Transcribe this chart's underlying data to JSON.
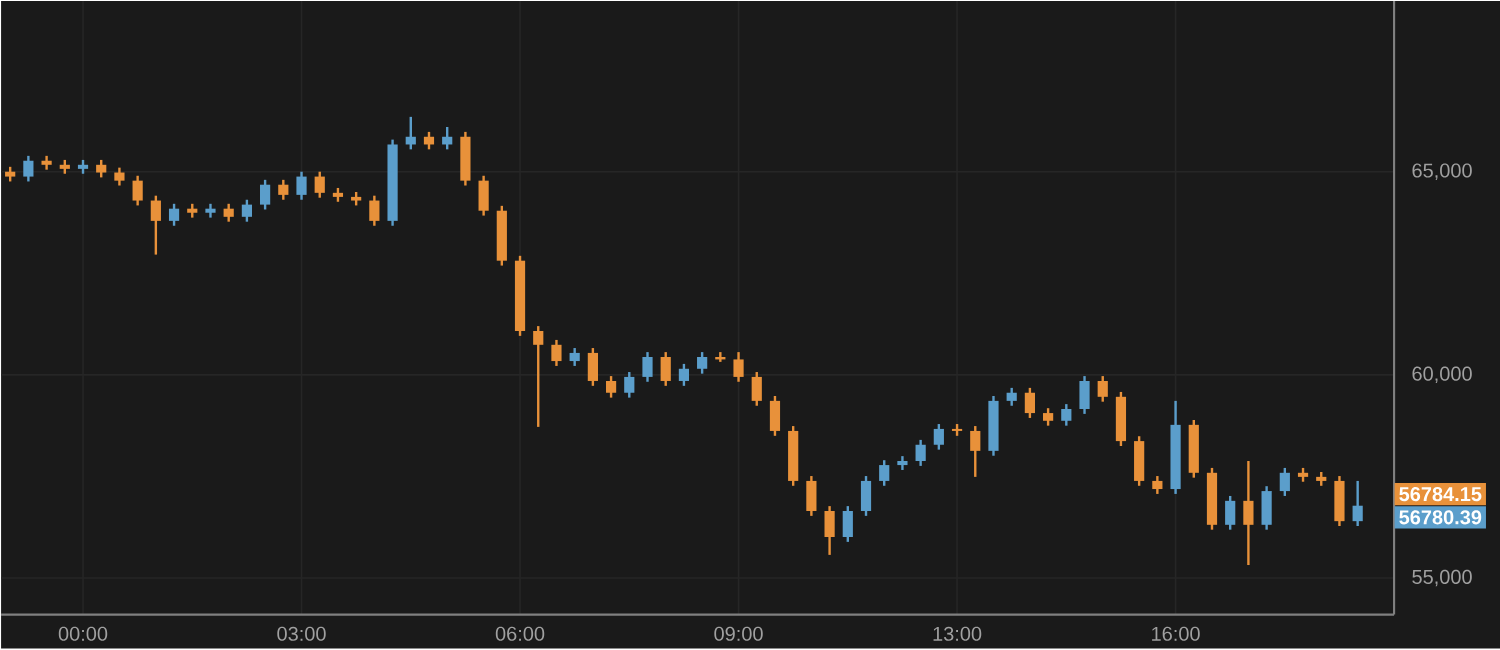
{
  "chart_data": {
    "type": "candlestick",
    "categories": [
      null,
      null,
      null,
      null,
      "00:00",
      null,
      null,
      null,
      null,
      null,
      null,
      null,
      null,
      null,
      null,
      null,
      "03:00",
      null,
      null,
      null,
      null,
      null,
      null,
      null,
      null,
      null,
      null,
      null,
      "06:00",
      null,
      null,
      null,
      null,
      null,
      null,
      null,
      null,
      null,
      null,
      null,
      "09:00",
      null,
      null,
      null,
      null,
      null,
      null,
      null,
      null,
      null,
      null,
      null,
      "13:00",
      null,
      null,
      null,
      null,
      null,
      null,
      null,
      null,
      null,
      null,
      null,
      "16:00",
      null,
      null,
      null,
      null,
      null,
      null,
      null,
      null,
      null,
      null
    ],
    "ohlc": [
      [
        65000,
        65120,
        64760,
        64880
      ],
      [
        64880,
        65390,
        64760,
        65270
      ],
      [
        65270,
        65390,
        65050,
        65170
      ],
      [
        65170,
        65290,
        64950,
        65070
      ],
      [
        65070,
        65290,
        64950,
        65170
      ],
      [
        65170,
        65290,
        64860,
        64980
      ],
      [
        64980,
        65100,
        64660,
        64780
      ],
      [
        64780,
        64900,
        64170,
        64290
      ],
      [
        64290,
        64410,
        62960,
        63790
      ],
      [
        63790,
        64210,
        63670,
        64090
      ],
      [
        64090,
        64210,
        63870,
        63990
      ],
      [
        63990,
        64210,
        63870,
        64090
      ],
      [
        64090,
        64210,
        63770,
        63890
      ],
      [
        63890,
        64310,
        63770,
        64190
      ],
      [
        64190,
        64800,
        64070,
        64680
      ],
      [
        64680,
        64800,
        64310,
        64430
      ],
      [
        64430,
        65000,
        64310,
        64880
      ],
      [
        64880,
        65000,
        64360,
        64480
      ],
      [
        64480,
        64600,
        64260,
        64380
      ],
      [
        64380,
        64500,
        64170,
        64290
      ],
      [
        64290,
        64410,
        63670,
        63790
      ],
      [
        63790,
        65790,
        63670,
        65670
      ],
      [
        65670,
        66350,
        65550,
        65860
      ],
      [
        65860,
        65980,
        65550,
        65670
      ],
      [
        65670,
        66100,
        65550,
        65860
      ],
      [
        65860,
        65980,
        64660,
        64780
      ],
      [
        64780,
        64900,
        63920,
        64040
      ],
      [
        64040,
        64160,
        62690,
        62810
      ],
      [
        62810,
        62930,
        60960,
        61080
      ],
      [
        61080,
        61200,
        58720,
        60740
      ],
      [
        60740,
        60860,
        60220,
        60340
      ],
      [
        60340,
        60660,
        60220,
        60540
      ],
      [
        60540,
        60660,
        59730,
        59850
      ],
      [
        59850,
        59970,
        59440,
        59560
      ],
      [
        59560,
        60070,
        59440,
        59950
      ],
      [
        59950,
        60560,
        59830,
        60440
      ],
      [
        60440,
        60560,
        59730,
        59850
      ],
      [
        59850,
        60270,
        59730,
        60150
      ],
      [
        60150,
        60560,
        60030,
        60440
      ],
      [
        60440,
        60560,
        60320,
        60380
      ],
      [
        60380,
        60560,
        59830,
        59950
      ],
      [
        59950,
        60070,
        59240,
        59360
      ],
      [
        59360,
        59480,
        58500,
        58620
      ],
      [
        58620,
        58740,
        57270,
        57390
      ],
      [
        57390,
        57510,
        56530,
        56650
      ],
      [
        56650,
        56770,
        55570,
        56010
      ],
      [
        56010,
        56770,
        55890,
        56650
      ],
      [
        56650,
        57510,
        56530,
        57390
      ],
      [
        57390,
        57900,
        57270,
        57780
      ],
      [
        57780,
        58000,
        57660,
        57880
      ],
      [
        57880,
        58400,
        57760,
        58280
      ],
      [
        58280,
        58790,
        58160,
        58670
      ],
      [
        58670,
        58790,
        58500,
        58620
      ],
      [
        58620,
        58740,
        57490,
        58130
      ],
      [
        58130,
        59480,
        58010,
        59360
      ],
      [
        59360,
        59680,
        59240,
        59560
      ],
      [
        59560,
        59680,
        58940,
        59060
      ],
      [
        59060,
        59180,
        58750,
        58870
      ],
      [
        58870,
        59280,
        58750,
        59160
      ],
      [
        59160,
        59970,
        59040,
        59850
      ],
      [
        59850,
        59970,
        59340,
        59460
      ],
      [
        59460,
        59580,
        58250,
        58370
      ],
      [
        58370,
        58490,
        57270,
        57390
      ],
      [
        57390,
        57510,
        57070,
        57190
      ],
      [
        57190,
        59360,
        57070,
        58770
      ],
      [
        58770,
        58890,
        57470,
        57590
      ],
      [
        57590,
        57710,
        56190,
        56310
      ],
      [
        56310,
        57020,
        56190,
        56900
      ],
      [
        56900,
        57880,
        55320,
        56310
      ],
      [
        56310,
        57260,
        56190,
        57140
      ],
      [
        57140,
        57710,
        57020,
        57590
      ],
      [
        57590,
        57710,
        57370,
        57490
      ],
      [
        57490,
        57610,
        57270,
        57390
      ],
      [
        57390,
        57510,
        56280,
        56400
      ],
      [
        56400,
        57390,
        56280,
        56780
      ]
    ],
    "ylim": [
      54100,
      69200
    ],
    "yticks": [
      {
        "value": 55000,
        "label": "55,000"
      },
      {
        "value": 60000,
        "label": "60,000"
      },
      {
        "value": 65000,
        "label": "65,000"
      }
    ],
    "grid": true,
    "annotations": [
      "56784.15",
      "56780.39"
    ]
  }
}
